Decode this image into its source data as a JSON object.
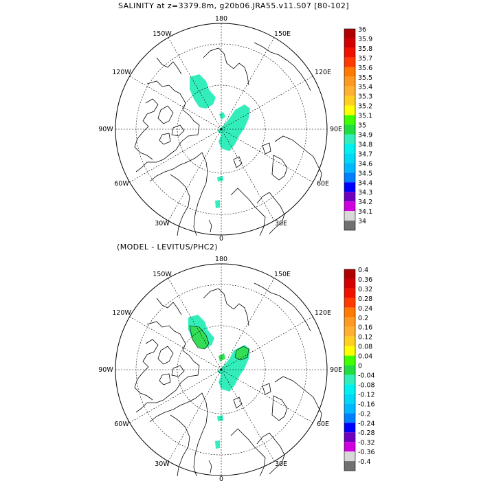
{
  "panels": [
    {
      "title": "SALINITY at z=3379.8m, g20b06.JRA55.v11.S07 [80-102]",
      "lon_labels": {
        "top": "180",
        "top_left": "150W",
        "top_right": "150E",
        "upper_left": "120W",
        "upper_right": "120E",
        "left": "90W",
        "right": "90E",
        "lower_left": "60W",
        "lower_right": "60E",
        "bottom_left": "30W",
        "bottom_right": "30E",
        "bottom": "0"
      },
      "colorbar": {
        "labels": [
          "36",
          "35.9",
          "35.8",
          "35.7",
          "35.6",
          "35.5",
          "35.4",
          "35.3",
          "35.2",
          "35.1",
          "35",
          "34.9",
          "34.8",
          "34.7",
          "34.6",
          "34.5",
          "34.4",
          "34.3",
          "34.2",
          "34.1",
          "34"
        ],
        "colors": [
          "#b00000",
          "#d40000",
          "#f01000",
          "#ff3a00",
          "#ff7a00",
          "#ff9a20",
          "#ffb030",
          "#ffd020",
          "#ffff00",
          "#40ff00",
          "#20dd40",
          "#33eebb",
          "#00f0f0",
          "#00d8f8",
          "#00b8ff",
          "#0080ff",
          "#0000ff",
          "#7000c0",
          "#d000e0",
          "#d8d8d8",
          "#707070"
        ]
      },
      "fill_color": "#33eebb"
    },
    {
      "title": "(MODEL - LEVITUS/PHC2)",
      "lon_labels": {
        "top": "180",
        "top_left": "150W",
        "top_right": "150E",
        "upper_left": "120W",
        "upper_right": "120E",
        "left": "90W",
        "right": "90E",
        "lower_left": "60W",
        "lower_right": "60E",
        "bottom_left": "30W",
        "bottom_right": "30E",
        "bottom": "0"
      },
      "colorbar": {
        "labels": [
          "0.4",
          "0.36",
          "0.32",
          "0.28",
          "0.24",
          "0.2",
          "0.16",
          "0.12",
          "0.08",
          "0.04",
          "0",
          "-0.04",
          "-0.08",
          "-0.12",
          "-0.16",
          "-0.2",
          "-0.24",
          "-0.28",
          "-0.32",
          "-0.36",
          "-0.4"
        ],
        "colors": [
          "#b00000",
          "#d40000",
          "#f01000",
          "#ff3a00",
          "#ff7a00",
          "#ff9a20",
          "#ffb030",
          "#ffd020",
          "#ffff00",
          "#40ff00",
          "#20dd40",
          "#33eebb",
          "#00f0f0",
          "#00d8f8",
          "#00b8ff",
          "#0080ff",
          "#0000ff",
          "#7000c0",
          "#d000e0",
          "#d8d8d8",
          "#707070"
        ]
      },
      "fill_color": "#33eebb",
      "positive_color": "#33dd55"
    }
  ]
}
